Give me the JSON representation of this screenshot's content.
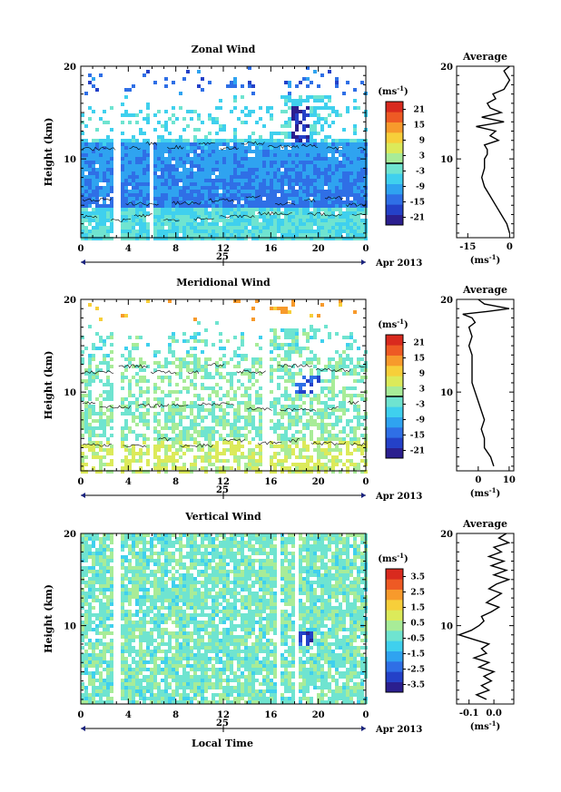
{
  "figure": {
    "xlabel": "Local Time",
    "date_label": "Apr 2013",
    "day_label": "25",
    "unit_label": "(ms",
    "unit_sup": "-1",
    "unit_close": ")",
    "avg_title": "Average"
  },
  "colors": {
    "scale": [
      "#2b1f8f",
      "#2441c8",
      "#2f6fe6",
      "#2fa3f0",
      "#3fd0ee",
      "#6fe4d0",
      "#a8ec98",
      "#dcea5a",
      "#f7cf3a",
      "#f79a2c",
      "#ee5a24",
      "#d92a1e"
    ]
  },
  "chart_data": [
    {
      "type": "heatmap",
      "title": "Zonal Wind",
      "ylabel": "Height (km)",
      "x_ticks": [
        "0",
        "4",
        "8",
        "12",
        "16",
        "20",
        "0"
      ],
      "xlim": [
        0,
        24
      ],
      "y_ticks": [
        "20",
        "10"
      ],
      "ylim": [
        1.5,
        20
      ],
      "colorbar_ticks": [
        "21",
        "15",
        "9",
        "3",
        "-3",
        "-9",
        "-15",
        "-21"
      ],
      "colorbar_range": [
        -24,
        24
      ],
      "average": {
        "title": "Average",
        "xlabel": "(ms",
        "x_ticks": [
          "-15",
          "0"
        ],
        "xlim": [
          -19,
          1.5
        ],
        "heights": [
          20,
          19.5,
          19,
          18.5,
          18,
          17.5,
          17,
          16.5,
          16,
          15.5,
          15,
          14.5,
          14,
          13.5,
          13,
          12.5,
          12,
          11.5,
          11,
          10.5,
          10,
          9,
          8,
          7,
          6,
          5,
          4,
          3,
          2
        ],
        "values": [
          0,
          -2,
          -1,
          0,
          -1,
          -2,
          -6,
          -5,
          -8,
          -7,
          -3,
          -10,
          -2,
          -12,
          -5,
          -7,
          -4,
          -9,
          -8,
          -8,
          -9,
          -9,
          -10,
          -9,
          -7,
          -5,
          -3,
          -1,
          0
        ]
      }
    },
    {
      "type": "heatmap",
      "title": "Meridional Wind",
      "ylabel": "Height (km)",
      "x_ticks": [
        "0",
        "4",
        "8",
        "12",
        "16",
        "20",
        "0"
      ],
      "xlim": [
        0,
        24
      ],
      "y_ticks": [
        "20",
        "10"
      ],
      "ylim": [
        1.5,
        20
      ],
      "colorbar_ticks": [
        "21",
        "15",
        "9",
        "3",
        "-3",
        "-9",
        "-15",
        "-21"
      ],
      "colorbar_range": [
        -24,
        24
      ],
      "average": {
        "title": "Average",
        "xlabel": "(ms",
        "x_ticks": [
          "0",
          "10"
        ],
        "xlim": [
          -7,
          11.5
        ],
        "heights": [
          20,
          19.5,
          19,
          18.7,
          18.4,
          18,
          17.5,
          17,
          16,
          15,
          14,
          13,
          12,
          11,
          10,
          9,
          8,
          7,
          6,
          5,
          4,
          3,
          2
        ],
        "values": [
          0,
          2,
          10,
          3,
          -5,
          -2,
          -1,
          -3,
          -2,
          -3,
          -2,
          -2,
          -2,
          -2,
          -1,
          0,
          1,
          2,
          1,
          2,
          2,
          4,
          5
        ]
      }
    },
    {
      "type": "heatmap",
      "title": "Vertical Wind",
      "ylabel": "Height (km)",
      "xlabel": "Local Time",
      "x_ticks": [
        "0",
        "4",
        "8",
        "12",
        "16",
        "20",
        "0"
      ],
      "xlim": [
        0,
        24
      ],
      "y_ticks": [
        "20",
        "10"
      ],
      "ylim": [
        1.5,
        20
      ],
      "colorbar_ticks": [
        "3.5",
        "2.5",
        "1.5",
        "0.5",
        "-0.5",
        "-1.5",
        "-2.5",
        "-3.5"
      ],
      "colorbar_range": [
        -4,
        4
      ],
      "average": {
        "title": "Average",
        "xlabel": "(ms",
        "x_ticks": [
          "-0.1",
          "0.0"
        ],
        "xlim": [
          -0.15,
          0.08
        ],
        "heights": [
          20,
          19.5,
          19,
          18.5,
          18,
          17.5,
          17,
          16.5,
          16,
          15.5,
          15,
          14.5,
          14,
          13.5,
          13,
          12.5,
          12,
          11.5,
          11,
          10.5,
          10,
          9.5,
          9,
          8.5,
          8,
          7.5,
          7,
          6.5,
          6,
          5.5,
          5,
          4.5,
          4,
          3.5,
          3,
          2.5,
          2
        ],
        "values": [
          0.05,
          0.02,
          0.06,
          0.0,
          0.03,
          -0.02,
          0.04,
          -0.01,
          0.05,
          0.0,
          0.06,
          0.01,
          -0.02,
          0.03,
          0.0,
          -0.03,
          0.02,
          -0.01,
          -0.05,
          -0.04,
          -0.06,
          -0.09,
          -0.14,
          -0.08,
          -0.02,
          -0.05,
          -0.03,
          -0.08,
          -0.02,
          -0.06,
          0.0,
          -0.04,
          -0.01,
          -0.05,
          -0.02,
          -0.07,
          -0.03
        ]
      }
    }
  ]
}
